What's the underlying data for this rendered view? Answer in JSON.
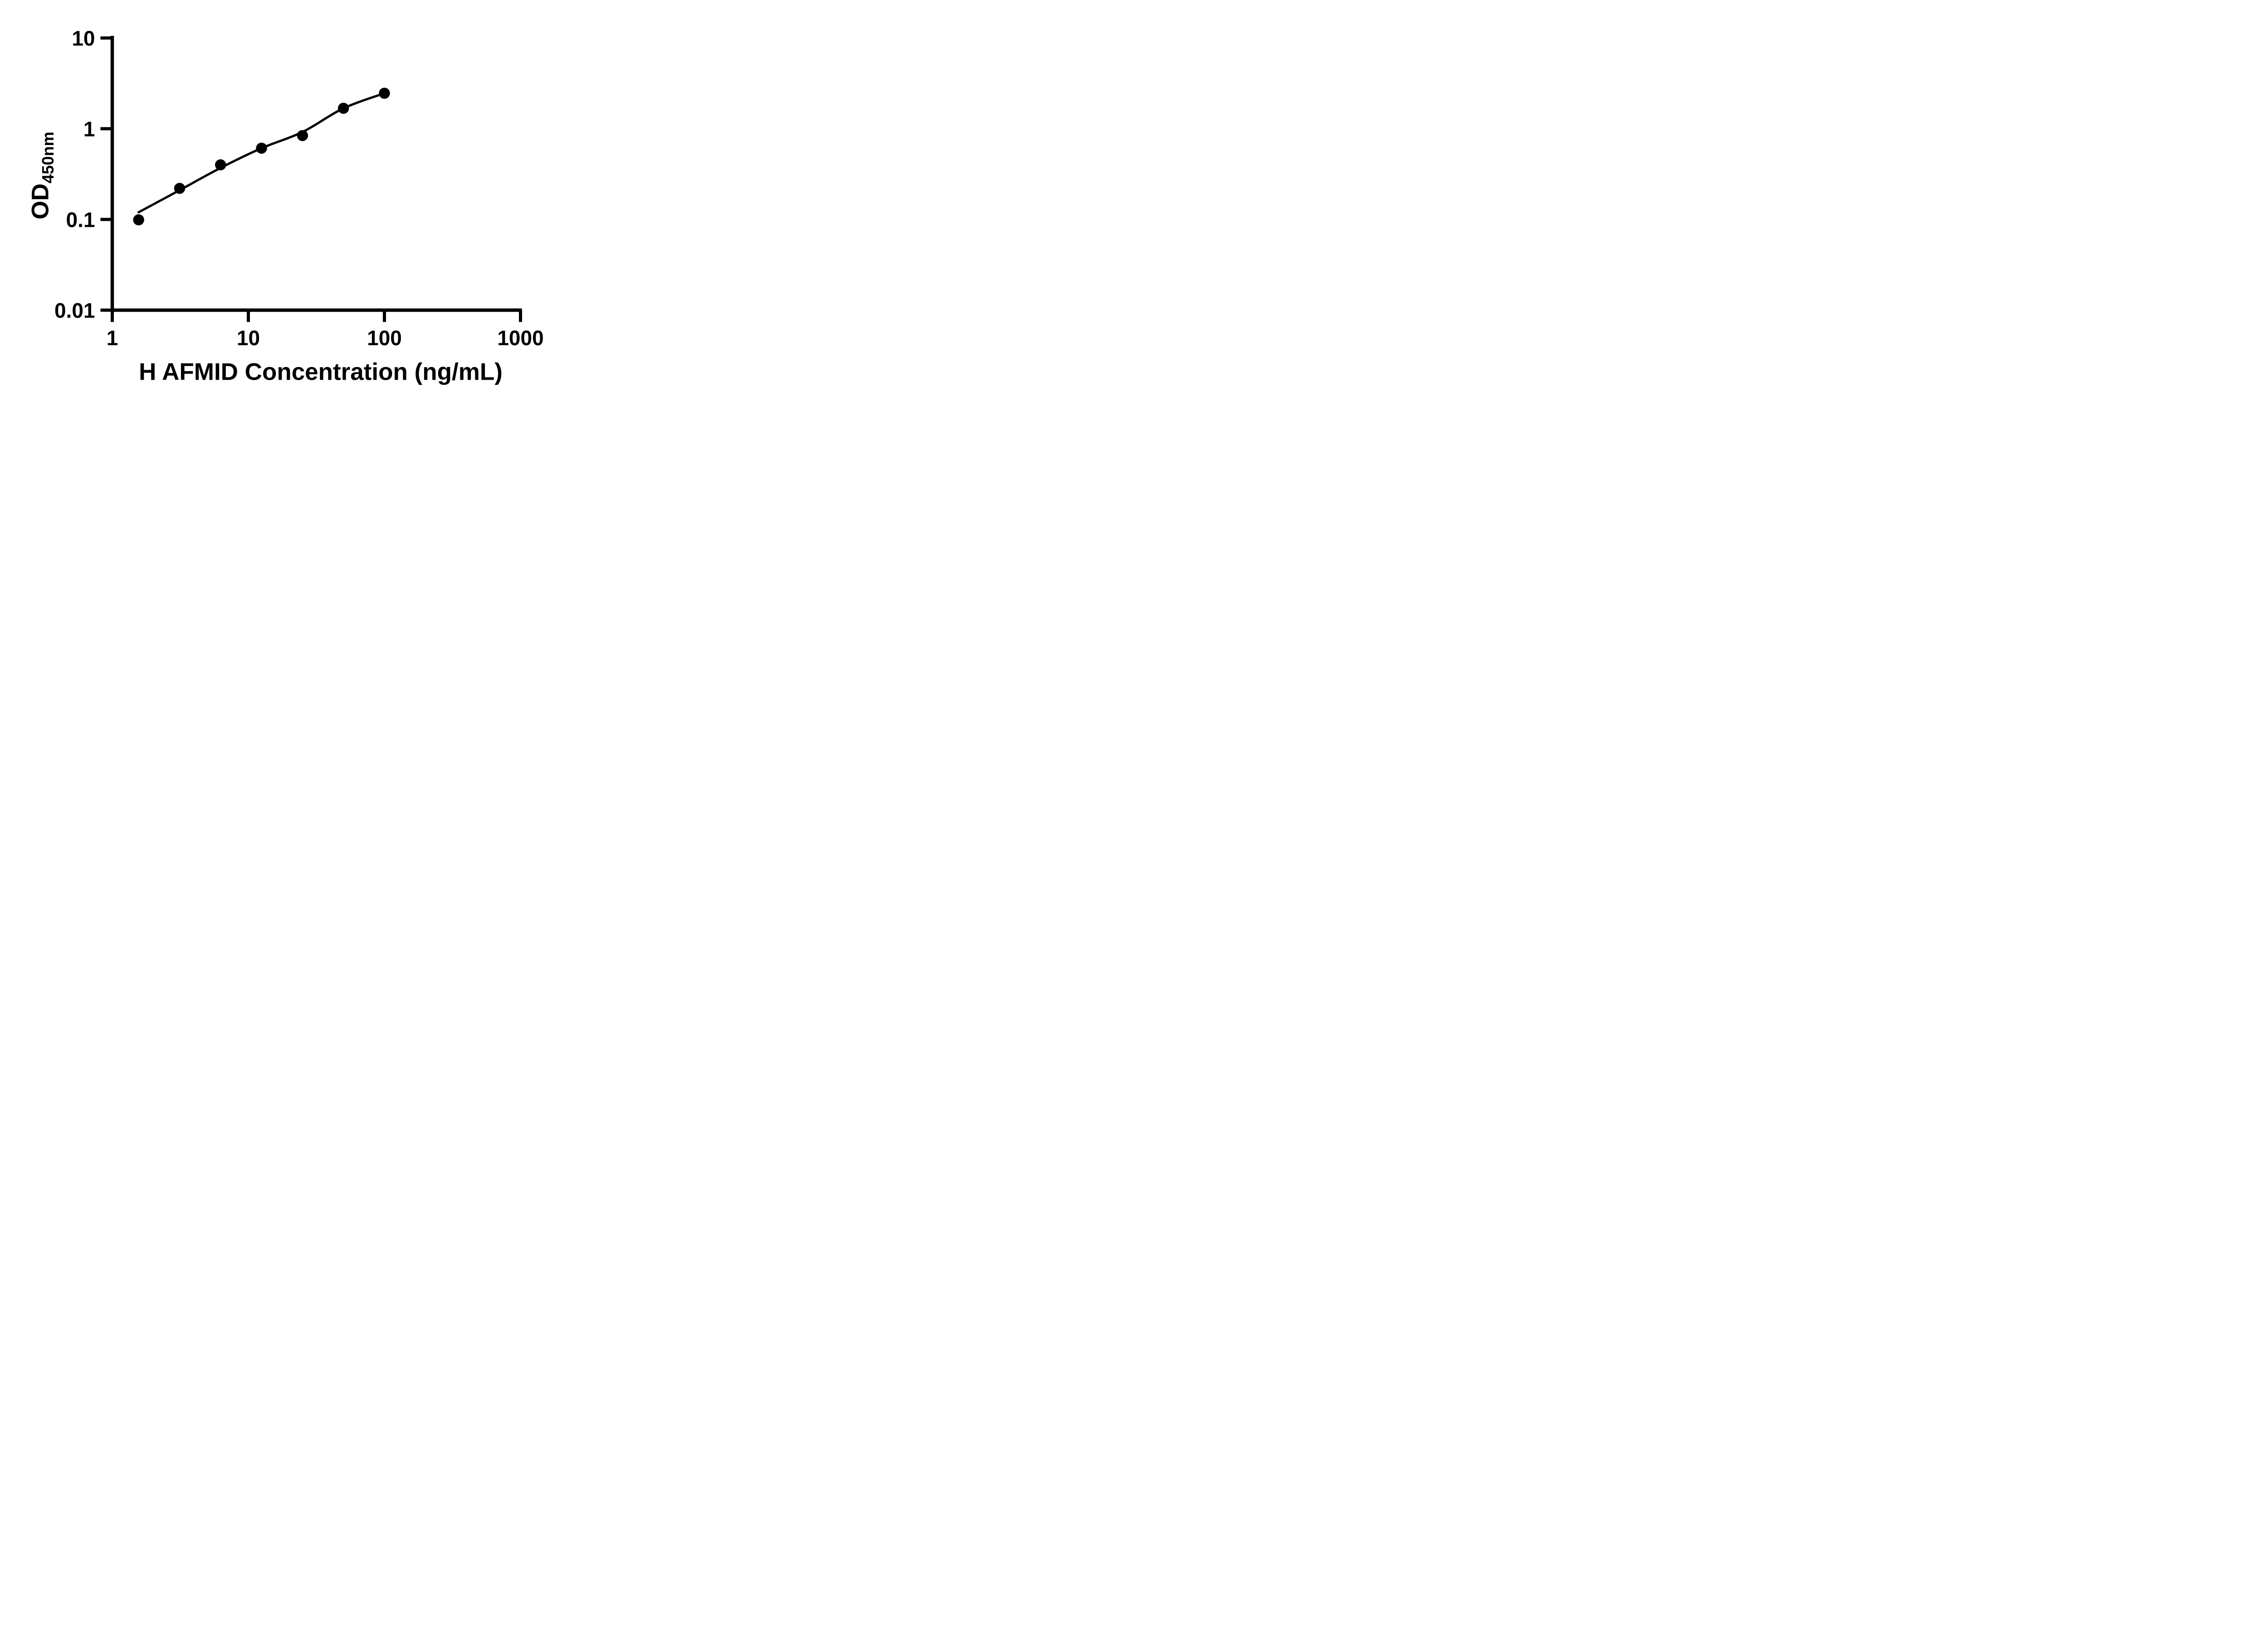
{
  "chart_data": {
    "type": "scatter",
    "title": "",
    "xlabel": "H AFMID Concentration (ng/mL)",
    "ylabel_base": "OD",
    "ylabel_subscript": "450nm",
    "xscale": "log",
    "yscale": "log",
    "xlim": [
      1,
      1000
    ],
    "ylim": [
      0.01,
      10
    ],
    "x_tick_labels": [
      "1",
      "10",
      "100",
      "1000"
    ],
    "x_tick_values": [
      1,
      10,
      100,
      1000
    ],
    "y_tick_labels": [
      "10",
      "1",
      "0.1",
      "0.01"
    ],
    "y_tick_values": [
      10,
      1,
      0.1,
      0.01
    ],
    "grid": false,
    "legend": "none",
    "series": [
      {
        "name": "standard-points",
        "marker": "filled-circle",
        "x": [
          1.5625,
          3.125,
          6.25,
          12.5,
          25,
          50,
          100
        ],
        "y": [
          0.099,
          0.22,
          0.4,
          0.61,
          0.84,
          1.68,
          2.46
        ]
      },
      {
        "name": "fit-curve",
        "marker": "none",
        "x": [
          1.5625,
          3.125,
          6.25,
          12.5,
          25,
          50,
          100
        ],
        "y": [
          0.12,
          0.21,
          0.37,
          0.61,
          0.92,
          1.68,
          2.46
        ]
      }
    ],
    "colors": {
      "points": "#000000",
      "curve": "#000000",
      "axes": "#000000",
      "background": "#ffffff"
    }
  }
}
